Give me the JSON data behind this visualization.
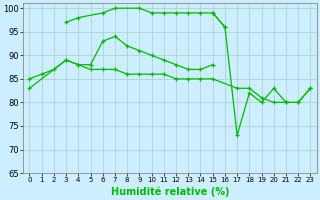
{
  "background_color": "#cceeff",
  "grid_color": "#aacccc",
  "line_color": "#00bb00",
  "xlabel": "Humidité relative (%)",
  "xlim": [
    -0.5,
    23.5
  ],
  "ylim": [
    65,
    101
  ],
  "yticks": [
    65,
    70,
    75,
    80,
    85,
    90,
    95,
    100
  ],
  "series": [
    {
      "x": [
        3,
        4,
        6,
        7,
        9,
        10,
        11,
        12,
        13,
        14,
        15,
        16
      ],
      "y": [
        97,
        98,
        99,
        100,
        100,
        99,
        99,
        99,
        99,
        99,
        99,
        96
      ]
    },
    {
      "x": [
        0,
        3,
        4,
        5,
        6,
        7,
        8,
        9,
        10,
        11,
        12,
        13,
        14,
        15
      ],
      "y": [
        83,
        89,
        88,
        88,
        93,
        94,
        92,
        91,
        90,
        89,
        88,
        87,
        87,
        88
      ]
    },
    {
      "x": [
        0,
        1,
        2,
        3,
        4,
        5,
        6,
        7,
        8,
        9,
        10,
        11,
        12,
        13,
        14,
        15,
        17,
        18,
        19,
        20,
        21,
        22,
        23
      ],
      "y": [
        85,
        86,
        87,
        89,
        88,
        87,
        87,
        87,
        86,
        86,
        86,
        86,
        85,
        85,
        85,
        85,
        83,
        83,
        81,
        80,
        80,
        80,
        83
      ]
    },
    {
      "x": [
        15,
        16,
        17,
        18,
        19,
        20,
        21,
        22,
        23
      ],
      "y": [
        99,
        96,
        73,
        82,
        80,
        83,
        80,
        80,
        83
      ]
    }
  ]
}
